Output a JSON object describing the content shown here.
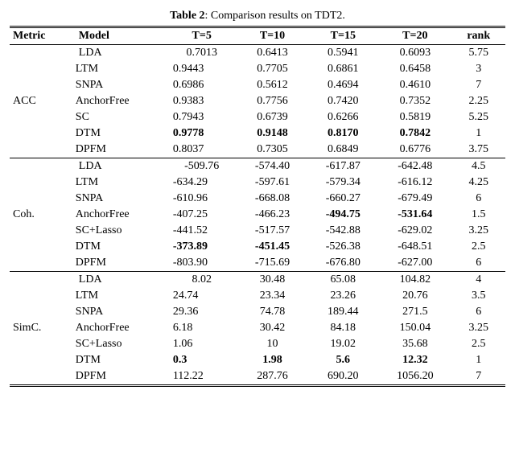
{
  "caption_bold": "Table 2",
  "caption_rest": ": Comparison results on TDT2.",
  "columns": [
    "Metric",
    "Model",
    "T=5",
    "T=10",
    "T=15",
    "T=20",
    "rank"
  ],
  "groups": [
    {
      "metric": "ACC",
      "rows": [
        {
          "model": "LDA",
          "vals": [
            "0.7013",
            "0.6413",
            "0.5941",
            "0.6093",
            "5.75"
          ],
          "bold": [
            false,
            false,
            false,
            false,
            false
          ]
        },
        {
          "model": "LTM",
          "vals": [
            "0.9443",
            "0.7705",
            "0.6861",
            "0.6458",
            "3"
          ],
          "bold": [
            false,
            false,
            false,
            false,
            false
          ]
        },
        {
          "model": "SNPA",
          "vals": [
            "0.6986",
            "0.5612",
            "0.4694",
            "0.4610",
            "7"
          ],
          "bold": [
            false,
            false,
            false,
            false,
            false
          ]
        },
        {
          "model": "AnchorFree",
          "vals": [
            "0.9383",
            "0.7756",
            "0.7420",
            "0.7352",
            "2.25"
          ],
          "bold": [
            false,
            false,
            false,
            false,
            false
          ]
        },
        {
          "model": "SC",
          "vals": [
            "0.7943",
            "0.6739",
            "0.6266",
            "0.5819",
            "5.25"
          ],
          "bold": [
            false,
            false,
            false,
            false,
            false
          ]
        },
        {
          "model": "DTM",
          "vals": [
            "0.9778",
            "0.9148",
            "0.8170",
            "0.7842",
            "1"
          ],
          "bold": [
            true,
            true,
            true,
            true,
            false
          ]
        },
        {
          "model": "DPFM",
          "vals": [
            "0.8037",
            "0.7305",
            "0.6849",
            "0.6776",
            "3.75"
          ],
          "bold": [
            false,
            false,
            false,
            false,
            false
          ]
        }
      ]
    },
    {
      "metric": "Coh.",
      "rows": [
        {
          "model": "LDA",
          "vals": [
            "-509.76",
            "-574.40",
            "-617.87",
            "-642.48",
            "4.5"
          ],
          "bold": [
            false,
            false,
            false,
            false,
            false
          ]
        },
        {
          "model": "LTM",
          "vals": [
            "-634.29",
            "-597.61",
            "-579.34",
            "-616.12",
            "4.25"
          ],
          "bold": [
            false,
            false,
            false,
            false,
            false
          ]
        },
        {
          "model": "SNPA",
          "vals": [
            "-610.96",
            "-668.08",
            "-660.27",
            "-679.49",
            "6"
          ],
          "bold": [
            false,
            false,
            false,
            false,
            false
          ]
        },
        {
          "model": "AnchorFree",
          "vals": [
            "-407.25",
            "-466.23",
            "-494.75",
            "-531.64",
            "1.5"
          ],
          "bold": [
            false,
            false,
            true,
            true,
            false
          ]
        },
        {
          "model": "SC+Lasso",
          "vals": [
            "-441.52",
            "-517.57",
            "-542.88",
            "-629.02",
            "3.25"
          ],
          "bold": [
            false,
            false,
            false,
            false,
            false
          ]
        },
        {
          "model": "DTM",
          "vals": [
            "-373.89",
            "-451.45",
            "-526.38",
            "-648.51",
            "2.5"
          ],
          "bold": [
            true,
            true,
            false,
            false,
            false
          ]
        },
        {
          "model": "DPFM",
          "vals": [
            "-803.90",
            "-715.69",
            "-676.80",
            "-627.00",
            "6"
          ],
          "bold": [
            false,
            false,
            false,
            false,
            false
          ]
        }
      ]
    },
    {
      "metric": "SimC.",
      "rows": [
        {
          "model": "LDA",
          "vals": [
            "8.02",
            "30.48",
            "65.08",
            "104.82",
            "4"
          ],
          "bold": [
            false,
            false,
            false,
            false,
            false
          ]
        },
        {
          "model": "LTM",
          "vals": [
            "24.74",
            "23.34",
            "23.26",
            "20.76",
            "3.5"
          ],
          "bold": [
            false,
            false,
            false,
            false,
            false
          ]
        },
        {
          "model": "SNPA",
          "vals": [
            "29.36",
            "74.78",
            "189.44",
            "271.5",
            "6"
          ],
          "bold": [
            false,
            false,
            false,
            false,
            false
          ]
        },
        {
          "model": "AnchorFree",
          "vals": [
            "6.18",
            "30.42",
            "84.18",
            "150.04",
            "3.25"
          ],
          "bold": [
            false,
            false,
            false,
            false,
            false
          ]
        },
        {
          "model": "SC+Lasso",
          "vals": [
            "1.06",
            "10",
            "19.02",
            "35.68",
            "2.5"
          ],
          "bold": [
            false,
            false,
            false,
            false,
            false
          ]
        },
        {
          "model": "DTM",
          "vals": [
            "0.3",
            "1.98",
            "5.6",
            "12.32",
            "1"
          ],
          "bold": [
            true,
            true,
            true,
            true,
            false
          ]
        },
        {
          "model": "DPFM",
          "vals": [
            "112.22",
            "287.76",
            "690.20",
            "1056.20",
            "7"
          ],
          "bold": [
            false,
            false,
            false,
            false,
            false
          ]
        }
      ]
    }
  ]
}
